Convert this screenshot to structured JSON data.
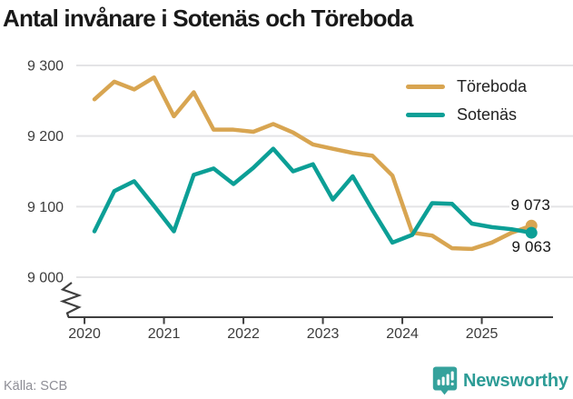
{
  "title": "Antal invånare i Sotenäs och Töreboda",
  "footer": {
    "source": "Källa: SCB",
    "brand": "Newsworthy"
  },
  "chart_data": {
    "type": "line",
    "title": "Antal invånare i Sotenäs och Töreboda",
    "x_tick_labels": [
      "2020",
      "2021",
      "2022",
      "2023",
      "2024",
      "2025"
    ],
    "x_tick_years": [
      2020,
      2021,
      2022,
      2023,
      2024,
      2025
    ],
    "x_points": [
      "2020 Q1",
      "2020 Q2",
      "2020 Q3",
      "2020 Q4",
      "2021 Q1",
      "2021 Q2",
      "2021 Q3",
      "2021 Q4",
      "2022 Q1",
      "2022 Q2",
      "2022 Q3",
      "2022 Q4",
      "2023 Q1",
      "2023 Q2",
      "2023 Q3",
      "2023 Q4",
      "2024 Q1",
      "2024 Q2",
      "2024 Q3",
      "2024 Q4",
      "2025 Q1",
      "2025 Q2",
      "2025 Q3"
    ],
    "y_ticks": [
      9000,
      9100,
      9200,
      9300
    ],
    "y_tick_labels": [
      "9 000",
      "9 100",
      "9 200",
      "9 300"
    ],
    "ylim": [
      9000,
      9300
    ],
    "y_axis_break": true,
    "grid": "horizontal",
    "legend_position": "top-right",
    "series": [
      {
        "id": "toreboda",
        "name": "Töreboda",
        "color": "#D8A551",
        "end_label": "9 073",
        "values": [
          9252,
          9277,
          9266,
          9283,
          9228,
          9262,
          9209,
          9209,
          9206,
          9217,
          9205,
          9188,
          9182,
          9176,
          9172,
          9144,
          9063,
          9059,
          9041,
          9040,
          9049,
          9063,
          9073
        ]
      },
      {
        "id": "sotenas",
        "name": "Sotenäs",
        "color": "#0C9F96",
        "end_label": "9 063",
        "values": [
          9065,
          9122,
          9136,
          9101,
          9065,
          9145,
          9154,
          9132,
          9155,
          9182,
          9150,
          9160,
          9110,
          9143,
          9095,
          9049,
          9060,
          9105,
          9104,
          9076,
          9071,
          9068,
          9063
        ]
      }
    ],
    "colors": {
      "toreboda": "#D8A551",
      "sotenas": "#0C9F96",
      "axis_text": "#3c3c3c",
      "grid": "#e4e4e6",
      "brand": "#2d9c96"
    }
  }
}
